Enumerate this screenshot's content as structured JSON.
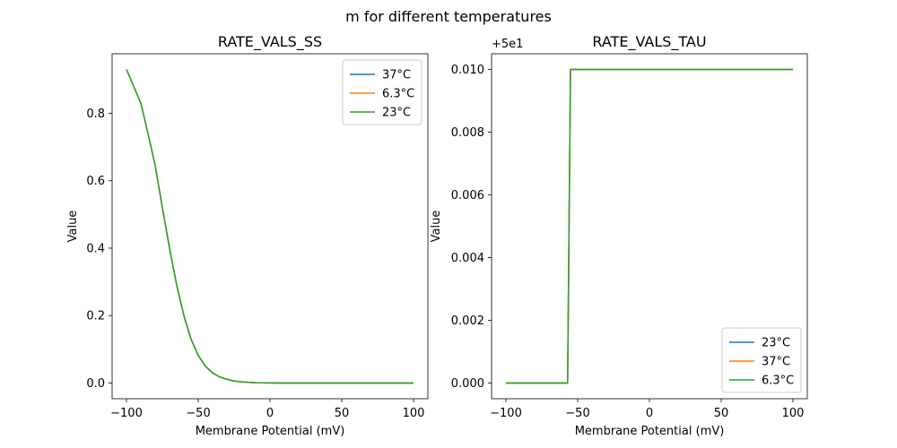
{
  "suptitle": "m for different temperatures",
  "colors": {
    "blue": "#1f77b4",
    "orange": "#ff7f0e",
    "green": "#2ca02c"
  },
  "chart_data": [
    {
      "type": "line",
      "title": "RATE_VALS_SS",
      "xlabel": "Membrane Potential (mV)",
      "ylabel": "Value",
      "xlim": [
        -110,
        110
      ],
      "ylim": [
        -0.0465,
        0.9765
      ],
      "xticks": [
        -100,
        -50,
        0,
        50,
        100
      ],
      "xtick_labels": [
        "−100",
        "−50",
        "0",
        "50",
        "100"
      ],
      "yticks": [
        0.0,
        0.2,
        0.4,
        0.6,
        0.8
      ],
      "ytick_labels": [
        "0.0",
        "0.2",
        "0.4",
        "0.6",
        "0.8"
      ],
      "legend_position": "upper right",
      "x": [
        -100,
        -95,
        -90,
        -85,
        -80,
        -75,
        -70,
        -65,
        -60,
        -55,
        -50,
        -45,
        -40,
        -35,
        -30,
        -25,
        -20,
        -15,
        -10,
        -5,
        0,
        10,
        20,
        30,
        40,
        50,
        60,
        70,
        80,
        90,
        100
      ],
      "series": [
        {
          "name": "37°C",
          "color": "#1f77b4",
          "values": [
            0.93,
            0.88,
            0.83,
            0.74,
            0.645,
            0.52,
            0.4,
            0.29,
            0.2,
            0.13,
            0.082,
            0.05,
            0.03,
            0.018,
            0.011,
            0.006,
            0.0035,
            0.002,
            0.001,
            0.0006,
            0.0003,
            0.0001,
            0.0,
            0.0,
            0.0,
            0.0,
            0.0,
            0.0,
            0.0,
            0.0,
            0.0
          ]
        },
        {
          "name": "6.3°C",
          "color": "#ff7f0e",
          "values": [
            0.93,
            0.88,
            0.83,
            0.74,
            0.645,
            0.52,
            0.4,
            0.29,
            0.2,
            0.13,
            0.082,
            0.05,
            0.03,
            0.018,
            0.011,
            0.006,
            0.0035,
            0.002,
            0.001,
            0.0006,
            0.0003,
            0.0001,
            0.0,
            0.0,
            0.0,
            0.0,
            0.0,
            0.0,
            0.0,
            0.0,
            0.0
          ]
        },
        {
          "name": "23°C",
          "color": "#2ca02c",
          "values": [
            0.93,
            0.88,
            0.83,
            0.74,
            0.645,
            0.52,
            0.4,
            0.29,
            0.2,
            0.13,
            0.082,
            0.05,
            0.03,
            0.018,
            0.011,
            0.006,
            0.0035,
            0.002,
            0.001,
            0.0006,
            0.0003,
            0.0001,
            0.0,
            0.0,
            0.0,
            0.0,
            0.0,
            0.0,
            0.0,
            0.0,
            0.0
          ]
        }
      ]
    },
    {
      "type": "line",
      "title": "RATE_VALS_TAU",
      "xlabel": "Membrane Potential (mV)",
      "ylabel": "Value",
      "offset_label": "+5e1",
      "xlim": [
        -110,
        110
      ],
      "ylim": [
        -0.0005,
        0.0105
      ],
      "xticks": [
        -100,
        -50,
        0,
        50,
        100
      ],
      "xtick_labels": [
        "−100",
        "−50",
        "0",
        "50",
        "100"
      ],
      "yticks": [
        0.0,
        0.002,
        0.004,
        0.006,
        0.008,
        0.01
      ],
      "ytick_labels": [
        "0.000",
        "0.002",
        "0.004",
        "0.006",
        "0.008",
        "0.010"
      ],
      "legend_position": "lower right",
      "x": [
        -100,
        -57,
        -55,
        100
      ],
      "series": [
        {
          "name": "23°C",
          "color": "#1f77b4",
          "values": [
            0.0,
            0.0,
            0.01,
            0.01
          ]
        },
        {
          "name": "37°C",
          "color": "#ff7f0e",
          "values": [
            0.0,
            0.0,
            0.01,
            0.01
          ]
        },
        {
          "name": "6.3°C",
          "color": "#2ca02c",
          "values": [
            0.0,
            0.0,
            0.01,
            0.01
          ]
        }
      ]
    }
  ]
}
